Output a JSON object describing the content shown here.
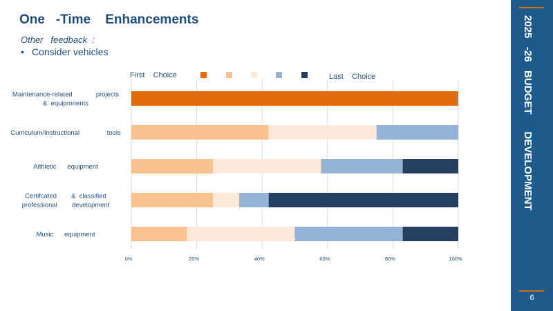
{
  "slide": {
    "title": "One   -Time    Enhancements",
    "subtitle": "Other   feedback  :",
    "bullet": "Consider vehicles",
    "sidebar_title": "2025   -26   BUDGET      DEVELOPMENT",
    "page_number": "6"
  },
  "colors": {
    "title": "#1f4e79",
    "sidebar": "#1f5b8a",
    "accent": "#e36c0a",
    "series": [
      "#e36c0a",
      "#f8c291",
      "#fce9da",
      "#95b3d7",
      "#243f60"
    ]
  },
  "chart_data": {
    "type": "bar",
    "orientation": "horizontal",
    "stacked": "percent",
    "categories": [
      [
        "Maintenance-related             projects",
        "&  equipmnents"
      ],
      [
        "Curriculum/Instructional               tools"
      ],
      [
        "Althletic      equipment"
      ],
      [
        "Certifcated        &  classified",
        "professional        development"
      ],
      [
        "Music      equipment"
      ]
    ],
    "series": [
      {
        "values": [
          100,
          0,
          0,
          0,
          0
        ]
      },
      {
        "values": [
          0,
          42,
          25,
          25,
          17
        ]
      },
      {
        "values": [
          0,
          33,
          33,
          8,
          33
        ]
      },
      {
        "values": [
          0,
          25,
          25,
          9,
          33
        ]
      },
      {
        "values": [
          0,
          0,
          17,
          58,
          17
        ]
      }
    ],
    "xlim": [
      0,
      100
    ],
    "xticks": [
      "0%",
      "20%",
      "40%",
      "60%",
      "80%",
      "100%"
    ],
    "grid": true,
    "legend": {
      "position": "top",
      "first_label": "First    Choice",
      "last_label": "Last    Choice"
    }
  }
}
